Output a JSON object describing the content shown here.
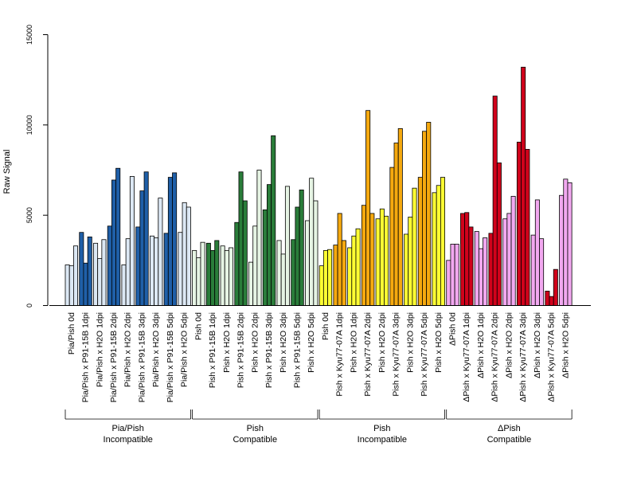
{
  "chart_data": {
    "type": "bar",
    "ylabel": "Raw Signal",
    "ylim": [
      0,
      15000
    ],
    "yticks": [
      0,
      5000,
      10000,
      15000
    ],
    "ytick_labels": [
      "0",
      "5000",
      "10000",
      "15000"
    ],
    "grid": false,
    "legend": "none",
    "categories": [
      "Pia/Pish 0d",
      "Pia/Pish x P91-15B 1dpi",
      "Pia/Pish x H2O 1dpi",
      "Pia/Pish x P91-15B 2dpi",
      "Pia/Pish x H2O 2dpi",
      "Pia/Pish x P91-15B 3dpi",
      "Pia/Pish x H2O 3dpi",
      "Pia/Pish x P91-15B 5dpi",
      "Pia/Pish x H2O 5dpi",
      "Pish 0d",
      "Pish x P91-15B 1dpi",
      "Pish x H2O 1dpi",
      "Pish x P91-15B 2dpi",
      "Pish x H2O 2dpi",
      "Pish x P91-15B 3dpi",
      "Pish x H2O 3dpi",
      "Pish x P91-15B 5dpi",
      "Pish x H2O 5dpi",
      "Pish 0d",
      "Pish x Kyu77-07A 1dpi",
      "Pish x H2O 1dpi",
      "Pish x Kyu77-07A 2dpi",
      "Pish x H2O 2dpi",
      "Pish x Kyu77-07A 3dpi",
      "Pish x H2O 3dpi",
      "Pish x Kyu77-07A 5dpi",
      "Pish x H2O 5dpi",
      "ΔPish 0d",
      "ΔPish x Kyu77-07A 1dpi",
      "ΔPish x H2O 1dpi",
      "ΔPish x Kyu77-07A 2dpi",
      "ΔPish x H2O 2dpi",
      "ΔPish x Kyu77-07A 3dpi",
      "ΔPish x H2O 3dpi",
      "ΔPish x Kyu77-07A 5dpi",
      "ΔPish x H2O 5dpi"
    ],
    "values": [
      [
        2250,
        2200,
        3300
      ],
      [
        4050,
        2350,
        3800
      ],
      [
        3450,
        2600,
        3650
      ],
      [
        4400,
        6950,
        7600
      ],
      [
        2250,
        3700,
        7150
      ],
      [
        4350,
        6350,
        7400
      ],
      [
        3850,
        3750,
        5950
      ],
      [
        4000,
        7100,
        7350
      ],
      [
        4050,
        5700,
        5450
      ],
      [
        3050,
        2650,
        3500
      ],
      [
        3450,
        3050,
        3600
      ],
      [
        3300,
        3050,
        3200
      ],
      [
        4600,
        7400,
        5800
      ],
      [
        2400,
        4400,
        7500
      ],
      [
        5300,
        6700,
        9400
      ],
      [
        3600,
        2850,
        6600
      ],
      [
        3650,
        5450,
        6400
      ],
      [
        4700,
        7050,
        5800
      ],
      [
        2200,
        3050,
        3100
      ],
      [
        3350,
        5100,
        3600
      ],
      [
        3200,
        3850,
        4250
      ],
      [
        5550,
        10800,
        5100
      ],
      [
        4800,
        5350,
        4950
      ],
      [
        7650,
        9000,
        9800
      ],
      [
        3950,
        4900,
        6500
      ],
      [
        7100,
        9650,
        10150
      ],
      [
        6250,
        6650,
        7100
      ],
      [
        2500,
        3400,
        3400
      ],
      [
        5100,
        5150,
        4350
      ],
      [
        4100,
        3150,
        3750
      ],
      [
        4000,
        11600,
        7900
      ],
      [
        4800,
        5100,
        6050
      ],
      [
        9050,
        13200,
        8650
      ],
      [
        3900,
        5850,
        3700
      ],
      [
        800,
        500,
        2000
      ],
      [
        6100,
        7000,
        6800
      ]
    ],
    "bar_colors": [
      "#dce8f4",
      "#1f5fa8",
      "#dce8f4",
      "#1f5fa8",
      "#dce8f4",
      "#1f5fa8",
      "#dce8f4",
      "#1f5fa8",
      "#dce8f4",
      "#e6f4e4",
      "#2a7d3a",
      "#e6f4e4",
      "#2a7d3a",
      "#e6f4e4",
      "#2a7d3a",
      "#e6f4e4",
      "#2a7d3a",
      "#e6f4e4",
      "#ffff33",
      "#f5a90f",
      "#ffff33",
      "#f5a90f",
      "#ffff33",
      "#f5a90f",
      "#ffff33",
      "#f5a90f",
      "#ffff33",
      "#f2a8f0",
      "#d0021b",
      "#f2a8f0",
      "#d0021b",
      "#f2a8f0",
      "#d0021b",
      "#f2a8f0",
      "#d0021b",
      "#f2a8f0"
    ],
    "groups": [
      {
        "line1": "Pia/Pish",
        "line2": "Incompatible",
        "start": 0,
        "end": 8
      },
      {
        "line1": "Pish",
        "line2": "Compatible",
        "start": 9,
        "end": 17
      },
      {
        "line1": "Pish",
        "line2": "Incompatible",
        "start": 18,
        "end": 26
      },
      {
        "line1": "ΔPish",
        "line2": "Compatible",
        "start": 27,
        "end": 35
      }
    ]
  }
}
